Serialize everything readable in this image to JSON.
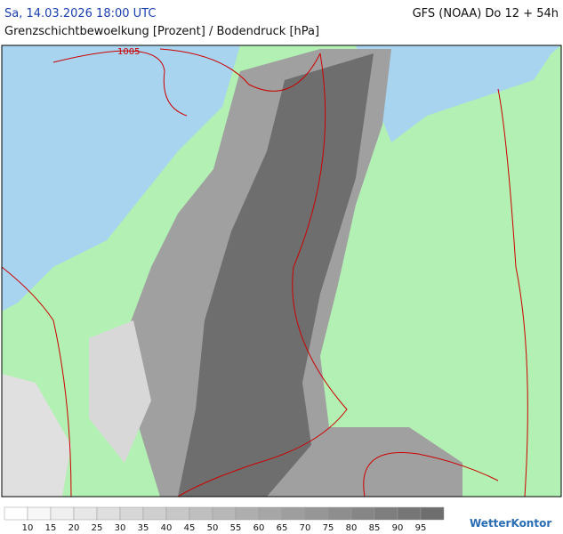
{
  "header": {
    "valid_time": "Sa, 14.03.2026 18:00 UTC",
    "model_run": "GFS (NOAA) Do 12 + 54h",
    "subtitle": "Grenzschichtbewoelkung [Prozent] / Bodendruck [hPa]"
  },
  "map": {
    "isobar_label": "1005"
  },
  "legend": {
    "ticks": [
      10,
      15,
      20,
      25,
      30,
      35,
      40,
      45,
      50,
      55,
      60,
      65,
      70,
      75,
      80,
      85,
      90,
      95
    ]
  },
  "brand": "WetterKontor"
}
